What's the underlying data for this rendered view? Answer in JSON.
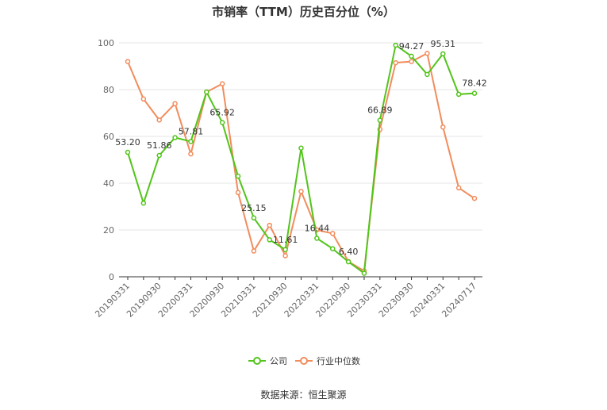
{
  "chart_data": {
    "type": "line",
    "title": "市销率（TTM）历史百分位（%）",
    "source_label": "数据来源：恒生聚源",
    "ylim": [
      0,
      100
    ],
    "y_ticks": [
      0,
      20,
      40,
      60,
      80,
      100
    ],
    "grid": true,
    "legend_position": "bottom",
    "x": [
      "20190331",
      "20190630",
      "20190930",
      "20191231",
      "20200331",
      "20200630",
      "20200930",
      "20201231",
      "20210331",
      "20210630",
      "20210930",
      "20211231",
      "20220331",
      "20220630",
      "20220930",
      "20221231",
      "20230331",
      "20230630",
      "20230930",
      "20231231",
      "20240331",
      "20240630",
      "20240717"
    ],
    "x_tick_labels": [
      "20190331",
      "20190930",
      "20200331",
      "20200930",
      "20210331",
      "20210930",
      "20220331",
      "20220930",
      "20230331",
      "20230930",
      "20240331",
      "20240717"
    ],
    "series": [
      {
        "name": "公司",
        "color": "#52c41a",
        "values": [
          53.2,
          31.5,
          51.86,
          59.5,
          57.81,
          79.0,
          65.92,
          43.0,
          25.15,
          15.8,
          11.61,
          55.0,
          16.44,
          12.0,
          6.4,
          1.5,
          66.89,
          99.0,
          94.27,
          86.5,
          95.31,
          78.0,
          78.42
        ]
      },
      {
        "name": "行业中位数",
        "color": "#f28c5c",
        "values": [
          92.0,
          76.0,
          67.0,
          74.0,
          52.5,
          79.0,
          82.5,
          36.0,
          11.0,
          22.0,
          9.0,
          36.5,
          20.0,
          18.5,
          6.5,
          2.5,
          63.0,
          91.5,
          92.0,
          95.5,
          64.0,
          38.0,
          33.5
        ]
      }
    ],
    "data_labels": [
      {
        "index": 0,
        "text": "53.20"
      },
      {
        "index": 2,
        "text": "51.86"
      },
      {
        "index": 4,
        "text": "57.81"
      },
      {
        "index": 6,
        "text": "65.92"
      },
      {
        "index": 8,
        "text": "25.15"
      },
      {
        "index": 10,
        "text": "11.61"
      },
      {
        "index": 12,
        "text": "16.44"
      },
      {
        "index": 14,
        "text": "6.40"
      },
      {
        "index": 16,
        "text": "66.89"
      },
      {
        "index": 18,
        "text": "94.27"
      },
      {
        "index": 20,
        "text": "95.31"
      },
      {
        "index": 22,
        "text": "78.42"
      }
    ]
  }
}
